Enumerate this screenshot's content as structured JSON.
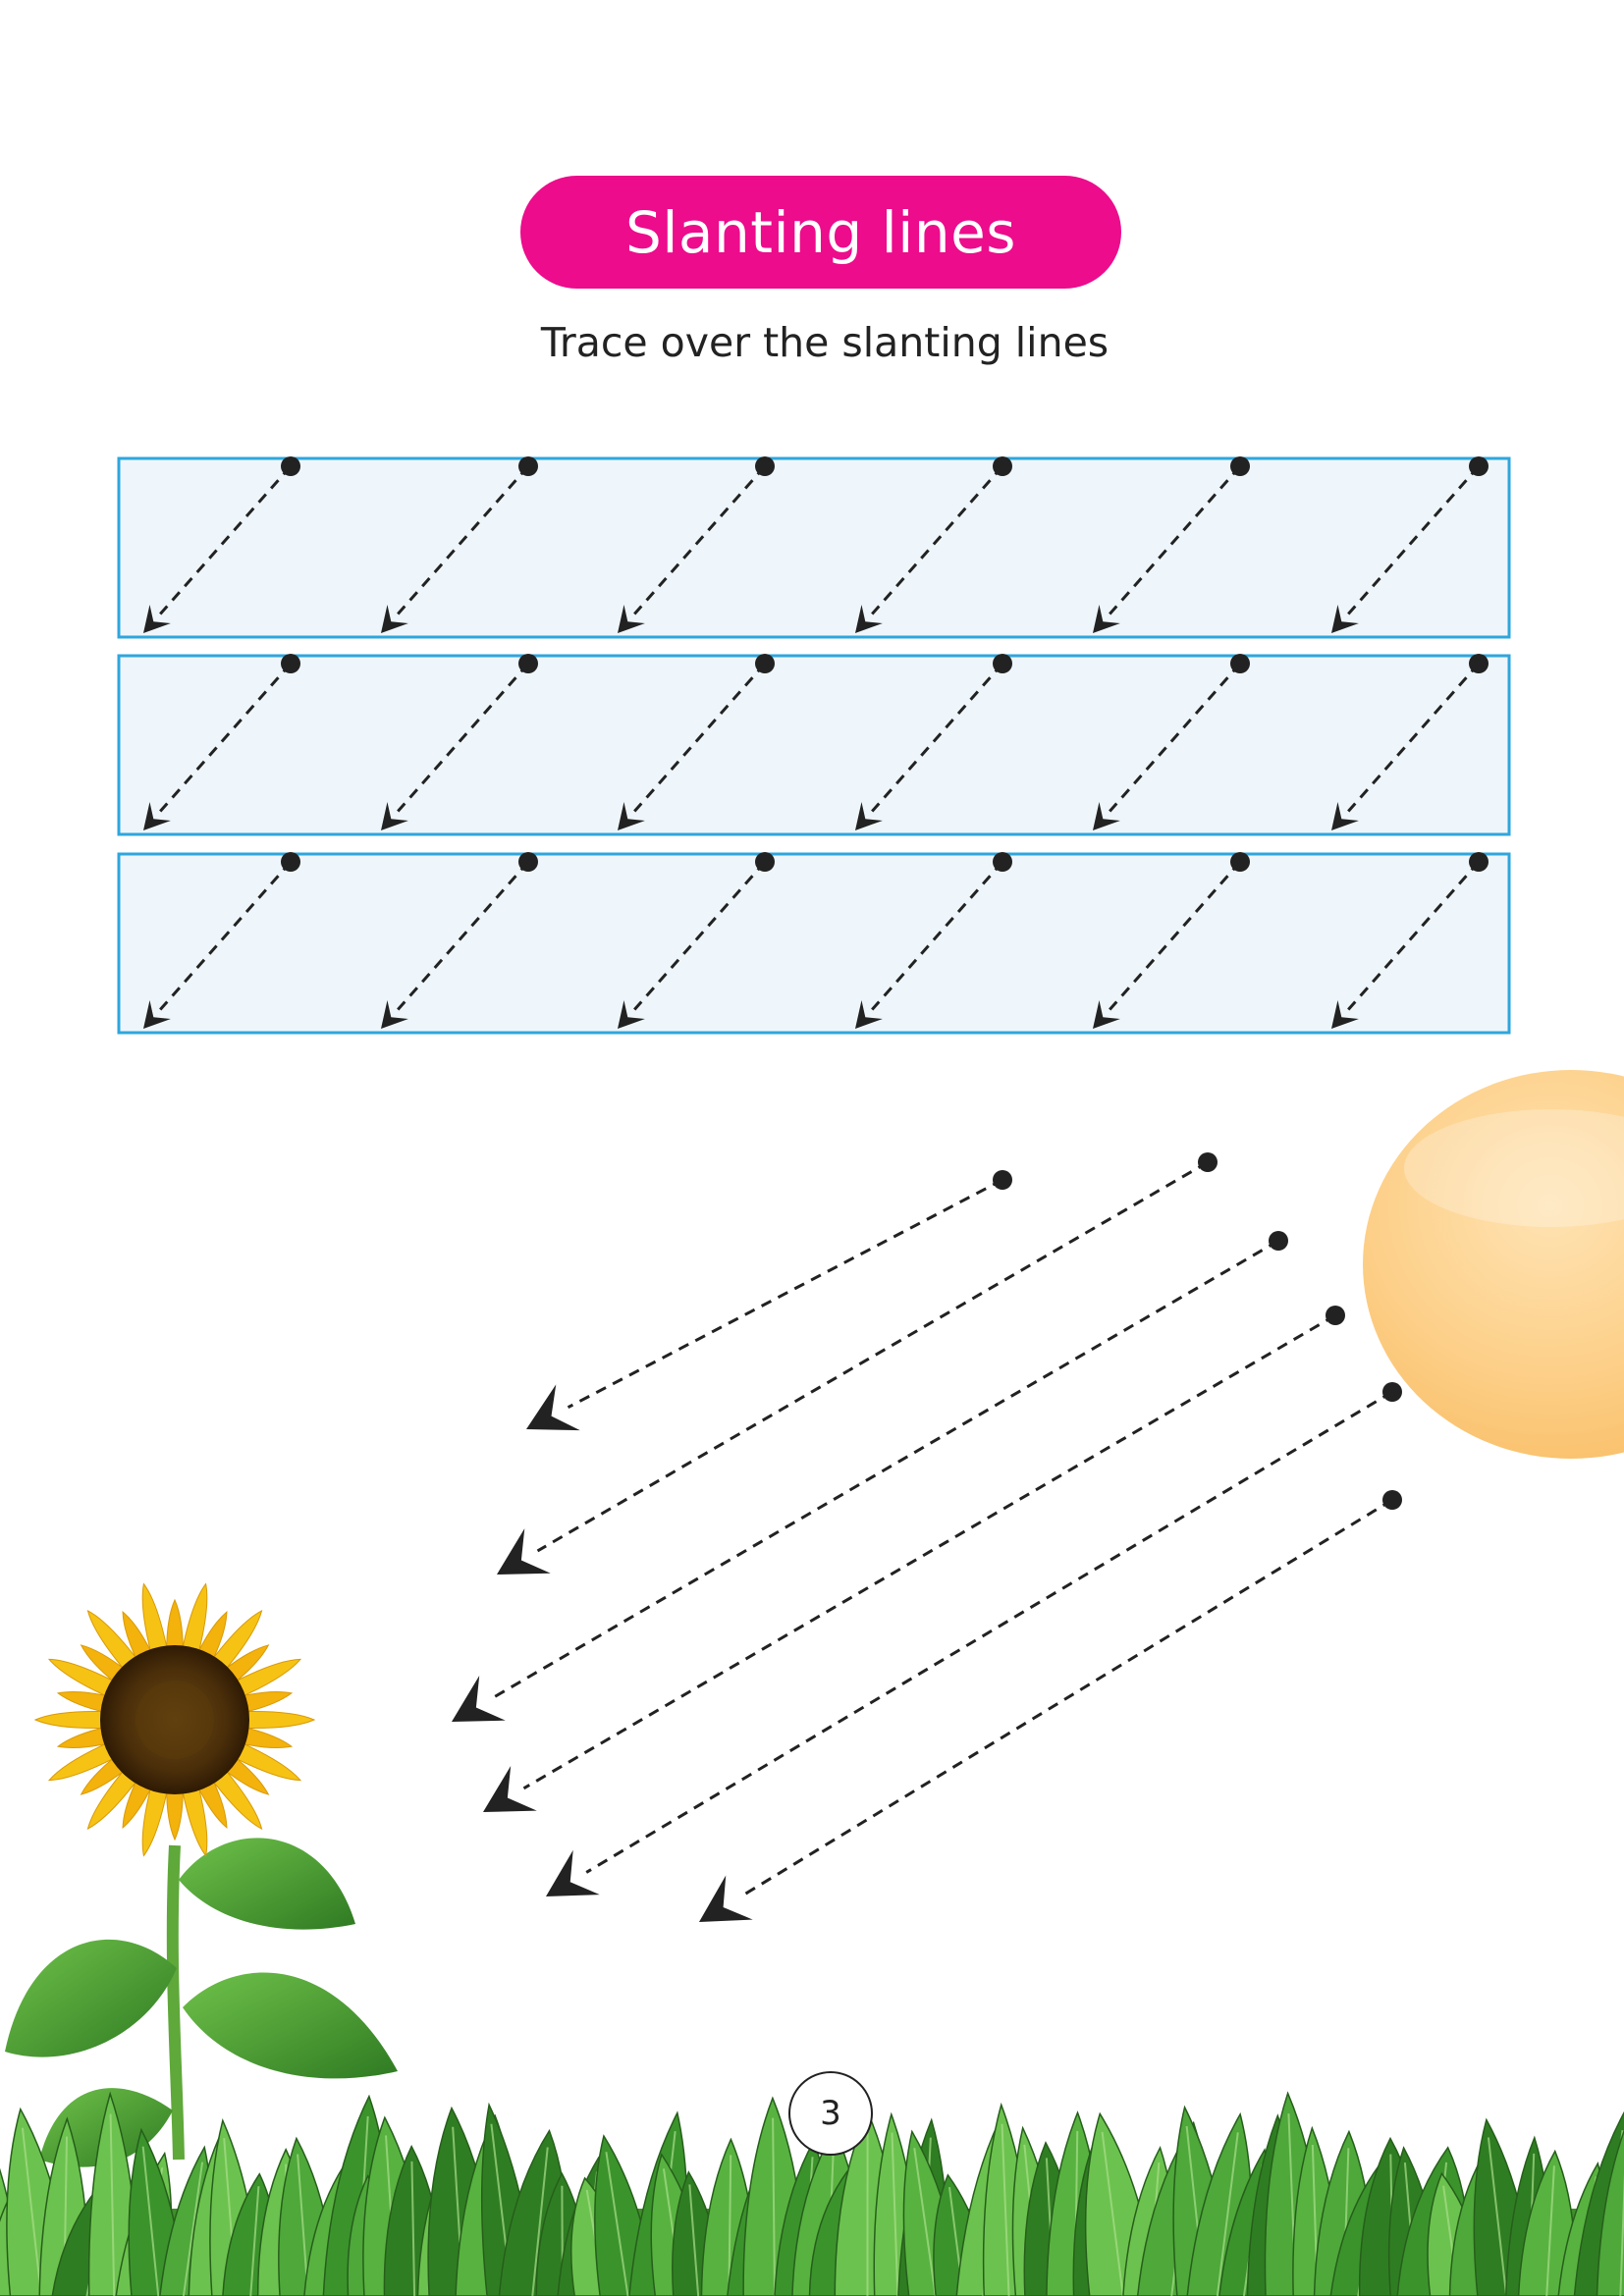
{
  "worksheet": {
    "title": "Slanting lines",
    "instruction": "Trace over the slanting lines",
    "page_number": "3"
  },
  "colors": {
    "title_pill": "#ec0c8c",
    "box_fill": "#eef6fb",
    "box_border": "#2ea6dc",
    "sun": "#fdd08a",
    "leaf": "#3f9a2e",
    "petal": "#f6c315"
  },
  "illustration": {
    "sun-icon": "sun",
    "flower-icon": "sunflower",
    "grass-icon": "leafy-border"
  }
}
